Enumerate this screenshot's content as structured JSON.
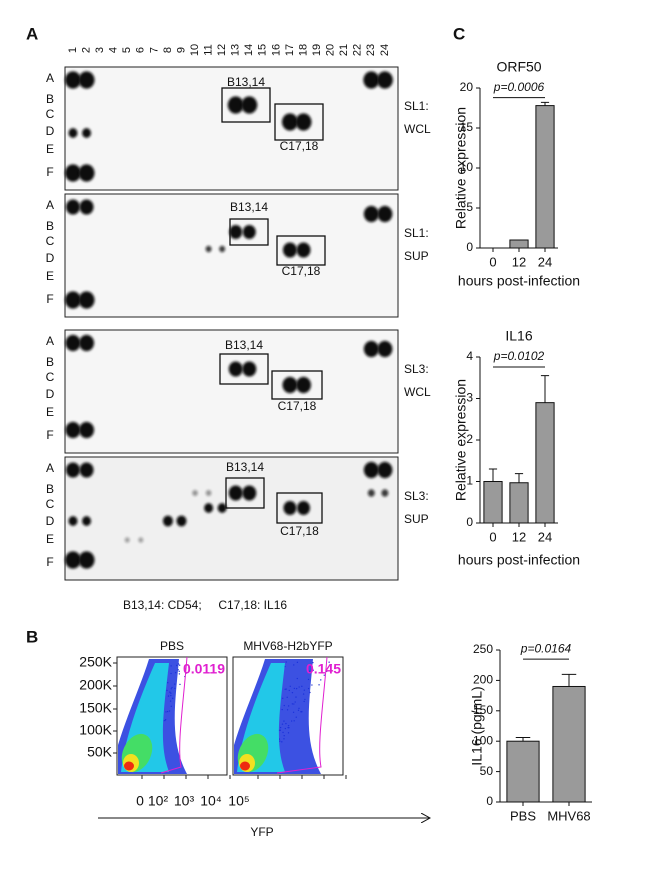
{
  "figure": {
    "panel_labels": [
      "A",
      "B",
      "C"
    ],
    "blots": {
      "columns": [
        "1",
        "2",
        "3",
        "4",
        "5",
        "6",
        "7",
        "8",
        "9",
        "10",
        "11",
        "12",
        "13",
        "14",
        "15",
        "16",
        "17",
        "18",
        "19",
        "20",
        "21",
        "22",
        "23",
        "24"
      ],
      "rows": [
        "A",
        "B",
        "C",
        "D",
        "E",
        "F"
      ],
      "panels": [
        {
          "box_labels": [
            "B13,14",
            "C17,18"
          ],
          "side": [
            "SL1:",
            "WCL"
          ]
        },
        {
          "box_labels": [
            "B13,14",
            "C17,18"
          ],
          "side": [
            "SL1:",
            "SUP"
          ]
        },
        {
          "box_labels": [
            "B13,14",
            "C17,18"
          ],
          "side": [
            "SL3:",
            "WCL"
          ]
        },
        {
          "box_labels": [
            "B13,14",
            "C17,18"
          ],
          "side": [
            "SL3:",
            "SUP"
          ]
        }
      ],
      "caption": "B13,14: CD54;     C17,18: IL16"
    },
    "flow": {
      "plots": [
        {
          "title": "PBS",
          "gate_value": 0.0119
        },
        {
          "title": "MHV68-H2bYFP",
          "gate_value": 0.145
        }
      ],
      "yticks": [
        "250K",
        "200K",
        "150K",
        "100K",
        "50K"
      ],
      "xticks": [
        "0",
        "10²",
        "10³",
        "10⁴",
        "10⁵"
      ],
      "xlabel": "YFP"
    }
  },
  "chart_data": [
    {
      "type": "bar",
      "title": "ORF50",
      "categories": [
        "0",
        "12",
        "24"
      ],
      "values": [
        0,
        1,
        17.8
      ],
      "errors": [
        0,
        0,
        0.4
      ],
      "color": "#9a9a9a",
      "ylim": [
        0,
        20
      ],
      "yticks": [
        0,
        5,
        10,
        15,
        20
      ],
      "ylabel": "Relative expression",
      "xlabel": "hours post-infection",
      "annotation": "p=0.0006"
    },
    {
      "type": "bar",
      "title": "IL16",
      "categories": [
        "0",
        "12",
        "24"
      ],
      "values": [
        1.0,
        0.97,
        2.9
      ],
      "errors": [
        0.3,
        0.22,
        0.65
      ],
      "color": "#9a9a9a",
      "ylim": [
        0,
        4
      ],
      "yticks": [
        0,
        1,
        2,
        3,
        4
      ],
      "ylabel": "Relative expression",
      "xlabel": "hours post-infection",
      "annotation": "p=0.0102"
    },
    {
      "type": "bar",
      "categories": [
        "PBS",
        "MHV68"
      ],
      "values": [
        100,
        190
      ],
      "errors": [
        6,
        20
      ],
      "color": "#9a9a9a",
      "ylim": [
        0,
        250
      ],
      "yticks": [
        0,
        50,
        100,
        150,
        200,
        250
      ],
      "ylabel": "IL16 (pg/mL)",
      "annotation": "p=0.0164"
    }
  ]
}
